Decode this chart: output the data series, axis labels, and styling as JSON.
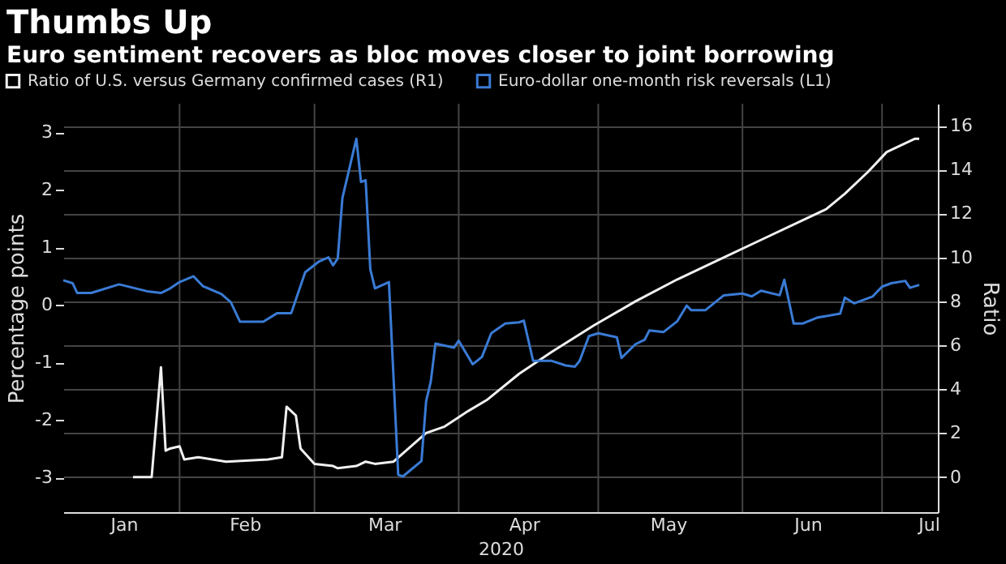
{
  "chart_data": {
    "type": "line",
    "title": "Thumbs Up",
    "subtitle": "Euro sentiment recovers as bloc moves closer to joint borrowing",
    "xlabel": "2020",
    "ylabel": "Percentage points",
    "y2label": "Ratio",
    "legend": "top left",
    "grid": true,
    "marker": "none",
    "line_style": "solid",
    "xlim": [
      "2020-01-07",
      "2020-07-13"
    ],
    "xticks": [
      {
        "value": "2020-02-01",
        "label": null
      },
      {
        "value": "2020-03-01",
        "label": null
      },
      {
        "value": "2020-04-01",
        "label": null
      },
      {
        "value": "2020-05-01",
        "label": null
      },
      {
        "value": "2020-06-01",
        "label": null
      },
      {
        "value": "2020-07-01",
        "label": null
      },
      {
        "value": "2020-01-20",
        "label": "Jan"
      },
      {
        "value": "2020-02-15",
        "label": "Feb"
      },
      {
        "value": "2020-03-16",
        "label": "Mar"
      },
      {
        "value": "2020-04-15",
        "label": "Apr"
      },
      {
        "value": "2020-05-16",
        "label": "May"
      },
      {
        "value": "2020-06-15",
        "label": "Jun"
      },
      {
        "value": "2020-07-11",
        "label": "Jul"
      }
    ],
    "ylim": [
      -3.6,
      3.5
    ],
    "yticks": [
      -3,
      -2,
      -1,
      0,
      1,
      2,
      3
    ],
    "y2lim": [
      -1.6,
      17
    ],
    "y2ticks": [
      0,
      2,
      4,
      6,
      8,
      10,
      12,
      14,
      16
    ],
    "series": [
      {
        "name": "Ratio of U.S. versus Germany confirmed cases  (R1)",
        "color": "#f0f0f0",
        "axis": "y2",
        "x": [
          "2020-01-22",
          "2020-01-26",
          "2020-01-28",
          "2020-01-29",
          "2020-01-30",
          "2020-02-01",
          "2020-02-02",
          "2020-02-05",
          "2020-02-11",
          "2020-02-20",
          "2020-02-23",
          "2020-02-24",
          "2020-02-26",
          "2020-02-27",
          "2020-03-01",
          "2020-03-05",
          "2020-03-06",
          "2020-03-10",
          "2020-03-12",
          "2020-03-14",
          "2020-03-18",
          "2020-03-25",
          "2020-03-29",
          "2020-04-03",
          "2020-04-07",
          "2020-04-14",
          "2020-04-21",
          "2020-04-30",
          "2020-05-09",
          "2020-05-18",
          "2020-05-27",
          "2020-06-05",
          "2020-06-14",
          "2020-06-19",
          "2020-06-23",
          "2020-06-28",
          "2020-07-02",
          "2020-07-08",
          "2020-07-09"
        ],
        "values": [
          0,
          0,
          5.0,
          1.2,
          1.3,
          1.4,
          0.8,
          0.9,
          0.7,
          0.8,
          0.9,
          3.2,
          2.8,
          1.3,
          0.6,
          0.5,
          0.4,
          0.5,
          0.7,
          0.6,
          0.7,
          2.0,
          2.3,
          3.0,
          3.5,
          4.7,
          5.7,
          6.9,
          8.0,
          9.0,
          9.9,
          10.8,
          11.7,
          12.2,
          12.9,
          13.9,
          14.8,
          15.4,
          15.4
        ]
      },
      {
        "name": "Euro-dollar one-month risk reversals (L1)",
        "color": "#3a7bd5",
        "axis": "y",
        "x": [
          "2020-01-07",
          "2020-01-09",
          "2020-01-10",
          "2020-01-13",
          "2020-01-19",
          "2020-01-22",
          "2020-01-25",
          "2020-01-28",
          "2020-01-30",
          "2020-02-01",
          "2020-02-04",
          "2020-02-06",
          "2020-02-10",
          "2020-02-12",
          "2020-02-14",
          "2020-02-19",
          "2020-02-22",
          "2020-02-25",
          "2020-02-28",
          "2020-03-02",
          "2020-03-04",
          "2020-03-05",
          "2020-03-06",
          "2020-03-07",
          "2020-03-10",
          "2020-03-11",
          "2020-03-12",
          "2020-03-13",
          "2020-03-14",
          "2020-03-17",
          "2020-03-19",
          "2020-03-20",
          "2020-03-24",
          "2020-03-25",
          "2020-03-26",
          "2020-03-27",
          "2020-03-31",
          "2020-04-01",
          "2020-04-04",
          "2020-04-06",
          "2020-04-08",
          "2020-04-11",
          "2020-04-14",
          "2020-04-15",
          "2020-04-17",
          "2020-04-21",
          "2020-04-24",
          "2020-04-26",
          "2020-04-27",
          "2020-04-29",
          "2020-05-01",
          "2020-05-05",
          "2020-05-06",
          "2020-05-09",
          "2020-05-11",
          "2020-05-12",
          "2020-05-15",
          "2020-05-18",
          "2020-05-20",
          "2020-05-21",
          "2020-05-24",
          "2020-05-28",
          "2020-06-01",
          "2020-06-03",
          "2020-06-05",
          "2020-06-09",
          "2020-06-10",
          "2020-06-12",
          "2020-06-14",
          "2020-06-17",
          "2020-06-22",
          "2020-06-23",
          "2020-06-25",
          "2020-06-29",
          "2020-07-01",
          "2020-07-03",
          "2020-07-06",
          "2020-07-07",
          "2020-07-09"
        ],
        "values": [
          0.43,
          0.38,
          0.21,
          0.21,
          0.36,
          0.3,
          0.24,
          0.21,
          0.29,
          0.4,
          0.5,
          0.33,
          0.19,
          0.05,
          -0.29,
          -0.29,
          -0.14,
          -0.14,
          0.57,
          0.76,
          0.83,
          0.69,
          0.81,
          1.86,
          2.89,
          2.14,
          2.17,
          0.62,
          0.29,
          0.4,
          -2.95,
          -2.98,
          -2.71,
          -1.67,
          -1.33,
          -0.67,
          -0.74,
          -0.62,
          -1.03,
          -0.9,
          -0.49,
          -0.32,
          -0.3,
          -0.27,
          -0.97,
          -0.97,
          -1.05,
          -1.07,
          -0.97,
          -0.54,
          -0.49,
          -0.56,
          -0.92,
          -0.68,
          -0.6,
          -0.44,
          -0.47,
          -0.28,
          -0.01,
          -0.09,
          -0.09,
          0.17,
          0.2,
          0.15,
          0.25,
          0.17,
          0.44,
          -0.32,
          -0.32,
          -0.22,
          -0.15,
          0.13,
          0.03,
          0.15,
          0.32,
          0.38,
          0.42,
          0.3,
          0.35
        ]
      }
    ]
  }
}
